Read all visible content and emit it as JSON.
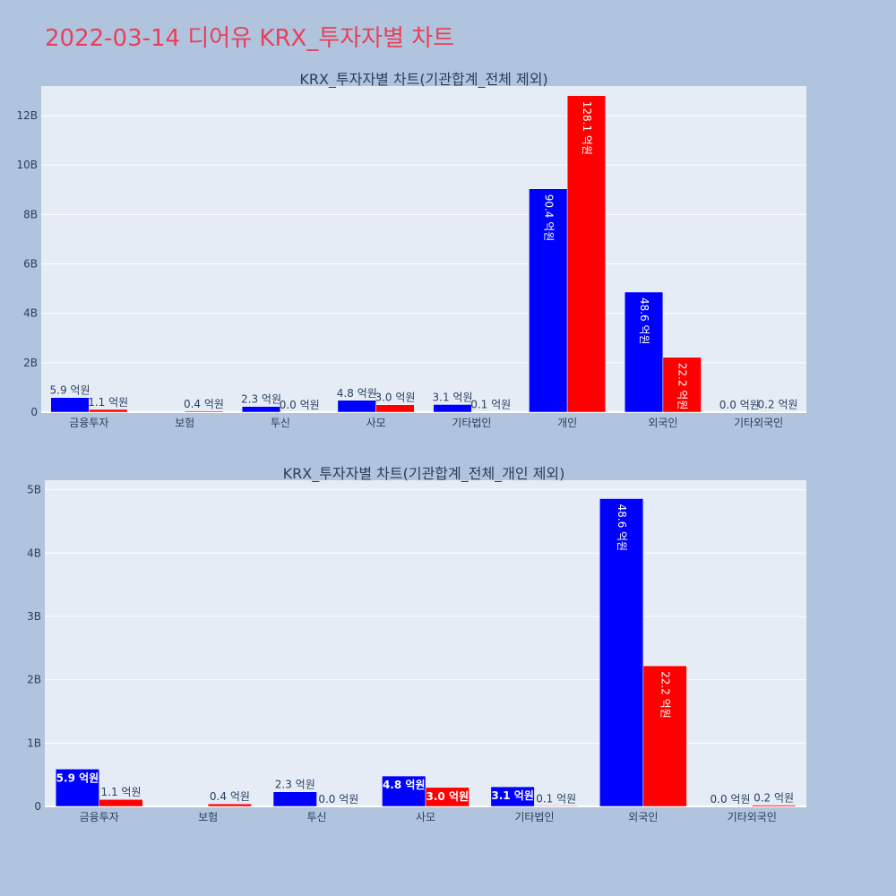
{
  "page": {
    "title": "2022-03-14 디어유 KRX_투자자별 차트"
  },
  "colors": {
    "background": "#b0c4de",
    "plot_background": "#e5ecf6",
    "title": "#e8405a",
    "buy": "#0000ff",
    "sell": "#ff0000"
  },
  "chart_data": [
    {
      "type": "bar",
      "title": "KRX_투자자별 차트(기관합계_전체 제외)",
      "categories": [
        "금융투자",
        "보험",
        "투신",
        "사모",
        "기타법인",
        "개인",
        "외국인",
        "기타외국인"
      ],
      "ylim": [
        0,
        13200000000
      ],
      "yticks": [
        0,
        2000000000,
        4000000000,
        6000000000,
        8000000000,
        10000000000,
        12000000000
      ],
      "ytick_labels": [
        "0",
        "2B",
        "4B",
        "6B",
        "8B",
        "10B",
        "12B"
      ],
      "grid": true,
      "series": [
        {
          "color": "#0000ff",
          "values": [
            590000000,
            0,
            230000000,
            480000000,
            310000000,
            9040000000,
            4860000000,
            0
          ],
          "labels": [
            "5.9 억원",
            "",
            "2.3 억원",
            "4.8 억원",
            "3.1 억원",
            "90.4 억원",
            "48.6 억원",
            "0.0 억원"
          ]
        },
        {
          "color": "#ff0000",
          "values": [
            110000000,
            40000000,
            0,
            300000000,
            10000000,
            12810000000,
            2220000000,
            20000000
          ],
          "labels": [
            "1.1 억원",
            "0.4 억원",
            "0.0 억원",
            "3.0 억원",
            "0.1 억원",
            "128.1 억원",
            "22.2 억원",
            "0.2 억원"
          ]
        }
      ]
    },
    {
      "type": "bar",
      "title": "KRX_투자자별 차트(기관합계_전체_개인 제외)",
      "categories": [
        "금융투자",
        "보험",
        "투신",
        "사모",
        "기타법인",
        "외국인",
        "기타외국인"
      ],
      "ylim": [
        0,
        5150000000
      ],
      "yticks": [
        0,
        1000000000,
        2000000000,
        3000000000,
        4000000000,
        5000000000
      ],
      "ytick_labels": [
        "0",
        "1B",
        "2B",
        "3B",
        "4B",
        "5B"
      ],
      "grid": true,
      "series": [
        {
          "color": "#0000ff",
          "values": [
            590000000,
            0,
            230000000,
            480000000,
            310000000,
            4860000000,
            0
          ],
          "labels": [
            "5.9 억원",
            "",
            "2.3 억원",
            "4.8 억원",
            "3.1 억원",
            "48.6 억원",
            "0.0 억원"
          ]
        },
        {
          "color": "#ff0000",
          "values": [
            110000000,
            40000000,
            0,
            300000000,
            10000000,
            2220000000,
            20000000
          ],
          "labels": [
            "1.1 억원",
            "0.4 억원",
            "0.0 억원",
            "3.0 억원",
            "0.1 억원",
            "22.2 억원",
            "0.2 억원"
          ]
        }
      ]
    }
  ]
}
